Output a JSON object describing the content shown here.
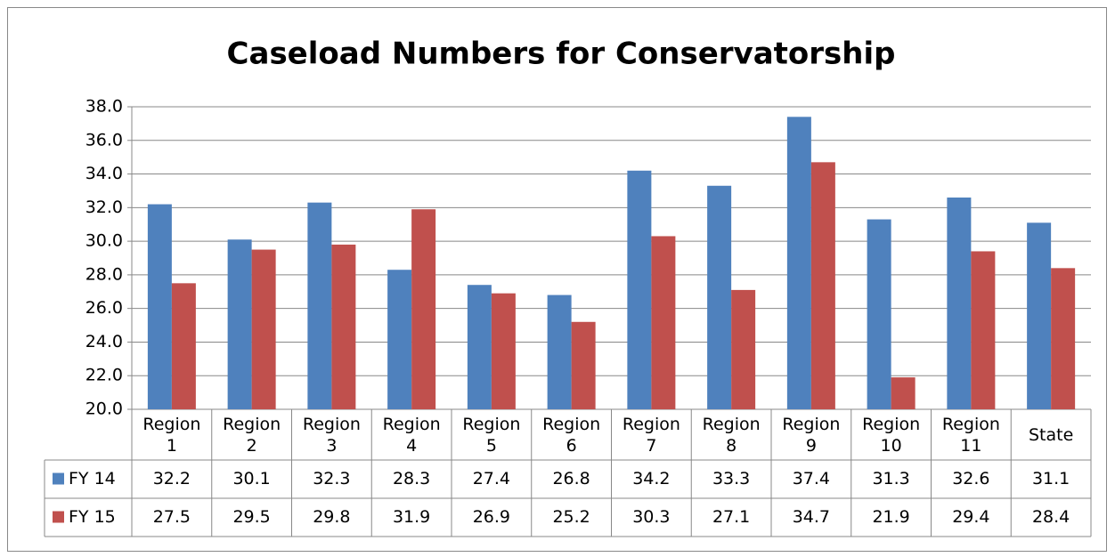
{
  "chart_data": {
    "type": "bar",
    "title": "Caseload Numbers for Conservatorship",
    "categories": [
      "Region 1",
      "Region 2",
      "Region 3",
      "Region 4",
      "Region 5",
      "Region 6",
      "Region 7",
      "Region 8",
      "Region 9",
      "Region 10",
      "Region 11",
      "State"
    ],
    "series": [
      {
        "name": "FY 14",
        "color": "#4f81bd",
        "values": [
          32.2,
          30.1,
          32.3,
          28.3,
          27.4,
          26.8,
          34.2,
          33.3,
          37.4,
          31.3,
          32.6,
          31.1
        ]
      },
      {
        "name": "FY 15",
        "color": "#c0504d",
        "values": [
          27.5,
          29.5,
          29.8,
          31.9,
          26.9,
          25.2,
          30.3,
          27.1,
          34.7,
          21.9,
          29.4,
          28.4
        ]
      }
    ],
    "ylim": [
      20,
      38
    ],
    "yticks": [
      {
        "value": 20,
        "label": "20.0"
      },
      {
        "value": 22,
        "label": "22.0"
      },
      {
        "value": 24,
        "label": "24.0"
      },
      {
        "value": 26,
        "label": "26.0"
      },
      {
        "value": 28,
        "label": "28.0"
      },
      {
        "value": 30,
        "label": "30.0"
      },
      {
        "value": 32,
        "label": "32.0"
      },
      {
        "value": 34,
        "label": "34.0"
      },
      {
        "value": 36,
        "label": "36.0"
      },
      {
        "value": 38,
        "label": "38.0"
      }
    ],
    "grid": true
  }
}
